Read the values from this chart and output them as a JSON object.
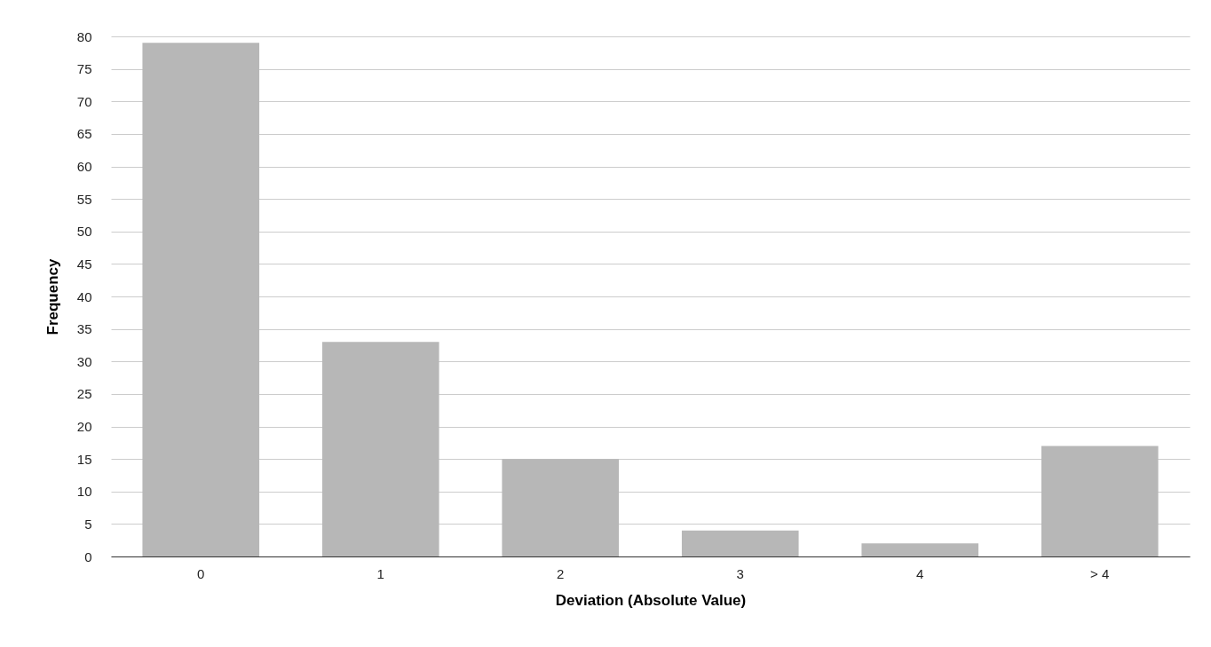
{
  "chart_data": {
    "type": "bar",
    "xlabel": "Deviation (Absolute Value)",
    "ylabel": "Frequency",
    "categories": [
      "0",
      "1",
      "2",
      "3",
      "4",
      "> 4"
    ],
    "values": [
      79,
      33,
      15,
      4,
      2,
      17
    ],
    "color": "#b7b7b7",
    "ylim": [
      0,
      80
    ],
    "yticks": [
      0,
      5,
      10,
      15,
      20,
      25,
      30,
      35,
      40,
      45,
      50,
      55,
      60,
      65,
      70,
      75,
      80
    ],
    "grid": "y"
  }
}
